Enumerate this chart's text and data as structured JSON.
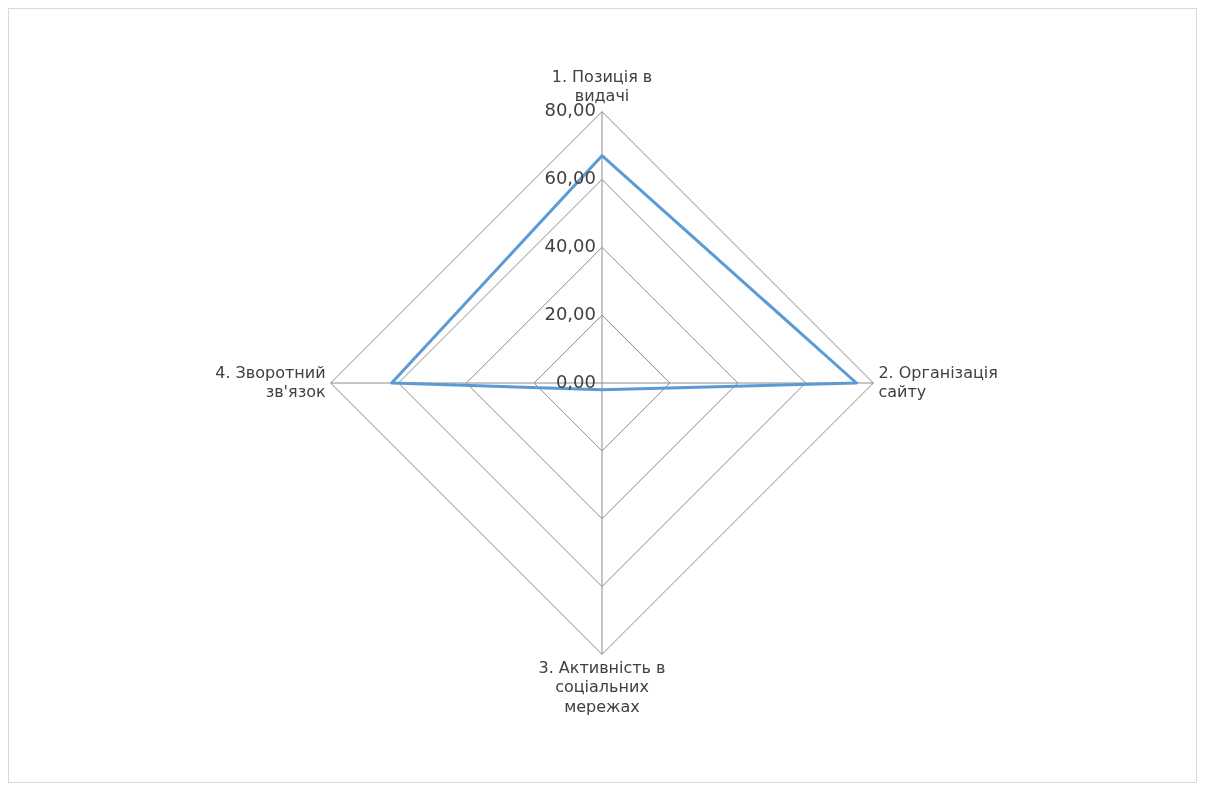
{
  "chart_data": {
    "type": "radar",
    "categories": [
      "1. Позиція в видачі",
      "2. Організація сайту",
      "3. Активність в соціальних мережах",
      "4. Зворотний зв'язок"
    ],
    "series": [
      {
        "color": "#5b9bd5",
        "values": [
          67,
          75,
          2,
          62
        ]
      }
    ],
    "ylim": [
      0,
      80
    ],
    "yticks": [
      {
        "value": 0,
        "label": "0,00"
      },
      {
        "value": 20,
        "label": "20,00"
      },
      {
        "value": 40,
        "label": "40,00"
      },
      {
        "value": 60,
        "label": "60,00"
      },
      {
        "value": 80,
        "label": "80,00"
      }
    ],
    "grid": true,
    "legend": false,
    "marker": "none"
  }
}
